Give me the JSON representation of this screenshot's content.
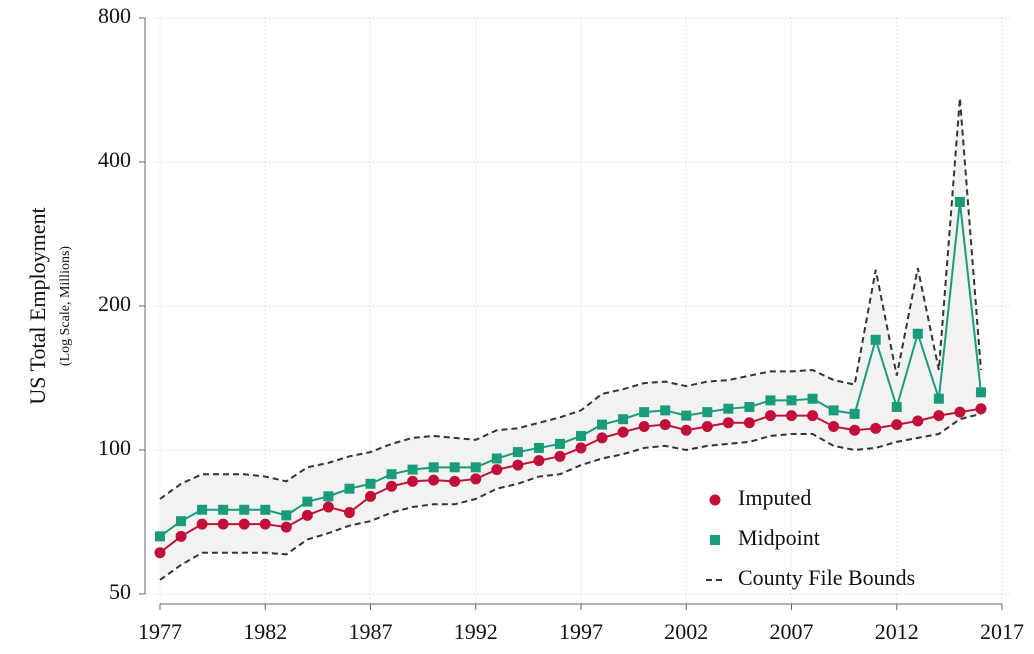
{
  "chart_data": {
    "type": "line",
    "y_label": "US Total Employment",
    "y_sublabel": "(Log Scale, Millions)",
    "x": [
      1977,
      1978,
      1979,
      1980,
      1981,
      1982,
      1983,
      1984,
      1985,
      1986,
      1987,
      1988,
      1989,
      1990,
      1991,
      1992,
      1993,
      1994,
      1995,
      1996,
      1997,
      1998,
      1999,
      2000,
      2001,
      2002,
      2003,
      2004,
      2005,
      2006,
      2007,
      2008,
      2009,
      2010,
      2011,
      2012,
      2013,
      2014,
      2015,
      2016
    ],
    "xlim": [
      1977,
      2017
    ],
    "xticks": [
      1977,
      1982,
      1987,
      1992,
      1997,
      2002,
      2007,
      2012,
      2017
    ],
    "ylim": [
      50,
      800
    ],
    "yticks": [
      50,
      100,
      200,
      400,
      800
    ],
    "log_y": true,
    "grid": true,
    "legend": "lower right",
    "series": [
      {
        "name": "Imputed",
        "color": "#c0103a",
        "marker": "circle",
        "values": [
          61,
          66,
          70,
          70,
          70,
          70,
          69,
          73,
          76,
          74,
          80,
          84,
          86,
          86.5,
          86,
          87,
          91,
          93,
          95,
          97,
          101,
          106,
          109,
          112,
          113,
          110,
          112,
          114,
          114,
          118,
          118,
          118,
          112,
          110,
          111,
          113,
          115,
          118,
          120,
          122
        ]
      },
      {
        "name": "Midpoint",
        "color": "#1a9c7a",
        "marker": "square",
        "values": [
          66,
          71,
          75,
          75,
          75,
          75,
          73,
          78,
          80,
          83,
          85,
          89,
          91,
          92,
          92,
          92,
          96,
          99,
          101,
          103,
          107,
          113,
          116,
          120,
          121,
          118,
          120,
          122,
          123,
          127,
          127,
          128,
          121,
          119,
          170,
          123,
          175,
          128,
          330,
          132
        ]
      }
    ],
    "band": {
      "name": "County File Bounds",
      "color": "#333333",
      "fill": "#f2f2f2",
      "upper": [
        79,
        85,
        89,
        89,
        89,
        88,
        86,
        92,
        94,
        97,
        99,
        103,
        106,
        107,
        106,
        105,
        110,
        111,
        114,
        117,
        121,
        131,
        134,
        138,
        139,
        136,
        139,
        140,
        143,
        146,
        146,
        147,
        140,
        137,
        238,
        143,
        240,
        147,
        544,
        147
      ],
      "lower": [
        53.5,
        57.5,
        61,
        61,
        61,
        61,
        60.5,
        65,
        67,
        69.5,
        71,
        74,
        76,
        77,
        77,
        79,
        83,
        85,
        88,
        89,
        93,
        96,
        98,
        101,
        102,
        100,
        102,
        103,
        104,
        107,
        108,
        108,
        102,
        100,
        101,
        104,
        106,
        108,
        116,
        119
      ]
    }
  }
}
